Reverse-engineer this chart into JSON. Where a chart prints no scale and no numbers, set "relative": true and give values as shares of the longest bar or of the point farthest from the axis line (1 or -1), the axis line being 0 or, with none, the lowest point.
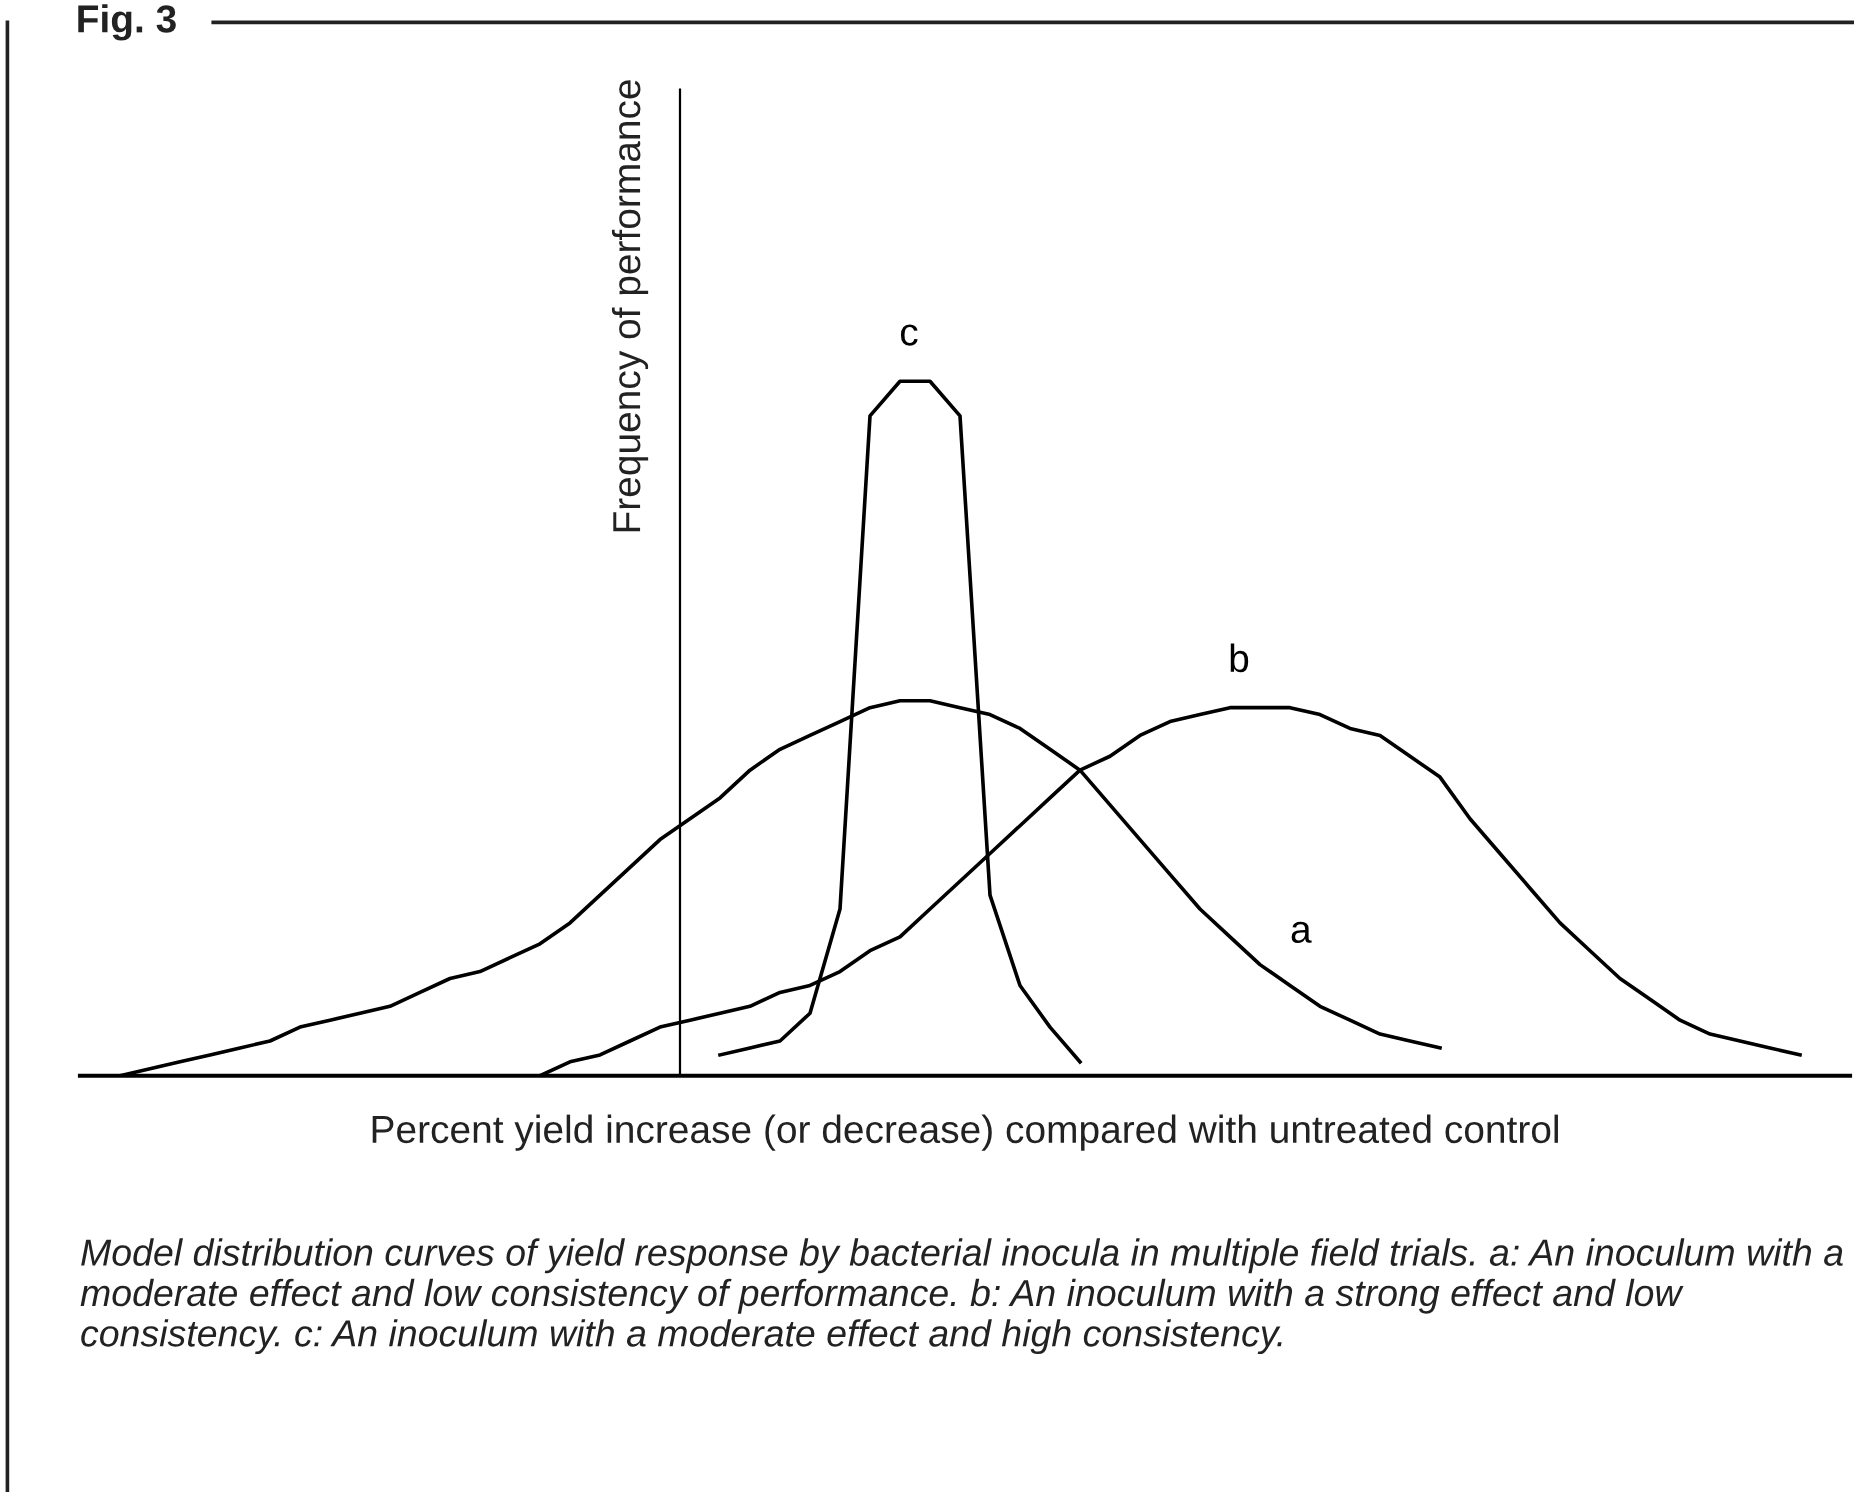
{
  "chart_data": {
    "type": "line",
    "relative": true,
    "title": "Fig. 3",
    "xlabel": "Percent yield increase (or decrease) compared with untreated control",
    "ylabel": "Frequency of performance",
    "categories": [
      null,
      null,
      null,
      null,
      null,
      null,
      null,
      null,
      null,
      null,
      null,
      null,
      null,
      null,
      null,
      null,
      null,
      null,
      null,
      null,
      null,
      null,
      null,
      null,
      null,
      null,
      null,
      null,
      null,
      null,
      null,
      null,
      null,
      null,
      null,
      null,
      null,
      null,
      null,
      null,
      null,
      null,
      null,
      null,
      null,
      null,
      null,
      null,
      null,
      null,
      null,
      null,
      null,
      null,
      null,
      null,
      null
    ],
    "series": [
      {
        "name": "a",
        "color": "#000000",
        "values": [
          0,
          0.01,
          0.02,
          0.03,
          0.04,
          0.05,
          0.07,
          0.08,
          0.09,
          0.1,
          0.12,
          0.14,
          0.15,
          0.17,
          0.19,
          0.22,
          0.26,
          0.3,
          0.34,
          0.37,
          0.4,
          0.44,
          0.47,
          0.49,
          0.51,
          0.53,
          0.54,
          0.54,
          0.53,
          0.52,
          0.5,
          0.47,
          0.44,
          0.39,
          0.34,
          0.29,
          0.24,
          0.2,
          0.16,
          0.13,
          0.1,
          0.08,
          0.06,
          0.05,
          0.04,
          null,
          null,
          null,
          null,
          null,
          null,
          null,
          null,
          null,
          null,
          null,
          null
        ]
      },
      {
        "name": "b",
        "color": "#000000",
        "values": [
          null,
          null,
          null,
          null,
          null,
          null,
          null,
          null,
          null,
          null,
          null,
          null,
          null,
          null,
          0,
          0.02,
          0.03,
          0.05,
          0.07,
          0.08,
          0.09,
          0.1,
          0.12,
          0.13,
          0.15,
          0.18,
          0.2,
          0.24,
          0.28,
          0.32,
          0.36,
          0.4,
          0.44,
          0.46,
          0.49,
          0.51,
          0.52,
          0.53,
          0.53,
          0.53,
          0.52,
          0.5,
          0.49,
          0.46,
          0.43,
          0.37,
          0.32,
          0.27,
          0.22,
          0.18,
          0.14,
          0.11,
          0.08,
          0.06,
          0.05,
          0.04,
          0.03
        ]
      },
      {
        "name": "c",
        "color": "#000000",
        "values": [
          null,
          null,
          null,
          null,
          null,
          null,
          null,
          null,
          null,
          null,
          null,
          null,
          null,
          null,
          null,
          null,
          null,
          null,
          null,
          null,
          0.03,
          0.04,
          0.05,
          0.09,
          0.24,
          0.95,
          1,
          1,
          0.95,
          0.26,
          0.13,
          0.07,
          0.02,
          null,
          null,
          null,
          null,
          null,
          null,
          null,
          null,
          null,
          null,
          null,
          null,
          null,
          null,
          null,
          null,
          null,
          null,
          null,
          null,
          null,
          null,
          null,
          null
        ]
      }
    ],
    "legend": false,
    "line_style": "solid",
    "marker": "none",
    "annotations": [
      "Model distribution curves of yield response by bacterial inocula in multiple field trials. a: An inoculum with a moderate effect and low consistency of performance. b: An inoculum with a strong effect and low consistency. c: An inoculum with a moderate effect and high consistency."
    ]
  }
}
